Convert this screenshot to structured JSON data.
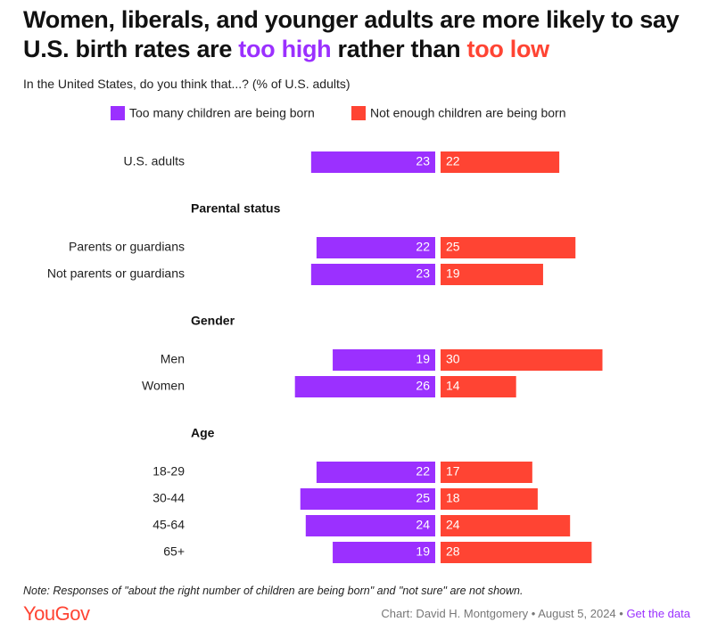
{
  "chart_data": {
    "type": "diverging_bar",
    "title": [
      "Women, liberals, and younger adults are more likely to say U.S. birth rates are ",
      "too high",
      " rather than ",
      "too low"
    ],
    "subtitle": "In the United States, do you think that...? (% of U.S. adults)",
    "categories": [
      "U.S. adults",
      "Parental status",
      "Parents or guardians",
      "Not parents or guardians",
      "Gender",
      "Men",
      "Women",
      "Age",
      "18-29",
      "30-44",
      "45-64",
      "65+"
    ],
    "series": [
      {
        "name": "Too many children are being born",
        "color": "#9b30ff",
        "values": [
          23,
          null,
          22,
          23,
          null,
          19,
          26,
          null,
          22,
          25,
          24,
          19
        ]
      },
      {
        "name": "Not enough children are being born",
        "color": "#ff4433",
        "values": [
          22,
          null,
          25,
          19,
          null,
          30,
          14,
          null,
          17,
          18,
          24,
          28
        ]
      }
    ],
    "note": "Note: Responses of \"about the right number of children are being born\" and \"not sure\" are not shown.",
    "logo": "YouGov",
    "credit": "Chart: David H. Montgomery • August 5, 2024 • ",
    "link": "Get the data"
  }
}
